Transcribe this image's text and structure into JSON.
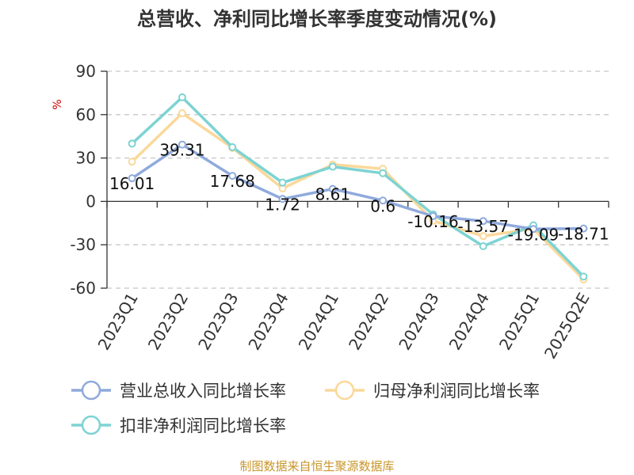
{
  "chart_data": {
    "type": "line",
    "title": "总营收、净利同比增长率季度变动情况(%)",
    "ylabel": "%",
    "xlabel": "",
    "categories": [
      "2023Q1",
      "2023Q2",
      "2023Q3",
      "2023Q4",
      "2024Q1",
      "2024Q2",
      "2024Q3",
      "2024Q4",
      "2025Q1",
      "2025Q2E"
    ],
    "ylim": [
      -60,
      90
    ],
    "yticks": [
      90,
      60,
      30,
      0,
      -30,
      -60
    ],
    "grid": true,
    "legend_position": "bottom",
    "series": [
      {
        "name": "营业总收入同比增长率",
        "color": "#8faadc",
        "values": [
          16.01,
          39.31,
          17.68,
          1.72,
          8.61,
          0.6,
          -10.16,
          -13.57,
          -19.09,
          -18.71
        ],
        "labels": [
          "16.01",
          "39.31",
          "17.68",
          "1.72",
          "8.61",
          "0.6",
          "-10.16",
          "-13.57",
          "-19.09",
          "-18.71"
        ]
      },
      {
        "name": "归母净利润同比增长率",
        "color": "#fbd89a",
        "values": [
          27.5,
          61.0,
          37.0,
          9.0,
          25.5,
          22.5,
          -13.5,
          -24.0,
          -19.0,
          -54.0
        ]
      },
      {
        "name": "扣非净利润同比增长率",
        "color": "#7dd3d3",
        "values": [
          40.0,
          72.0,
          37.5,
          13.0,
          24.0,
          19.5,
          -9.0,
          -31.0,
          -16.5,
          -52.0
        ]
      }
    ]
  },
  "source_text": "制图数据来自恒生聚源数据库"
}
